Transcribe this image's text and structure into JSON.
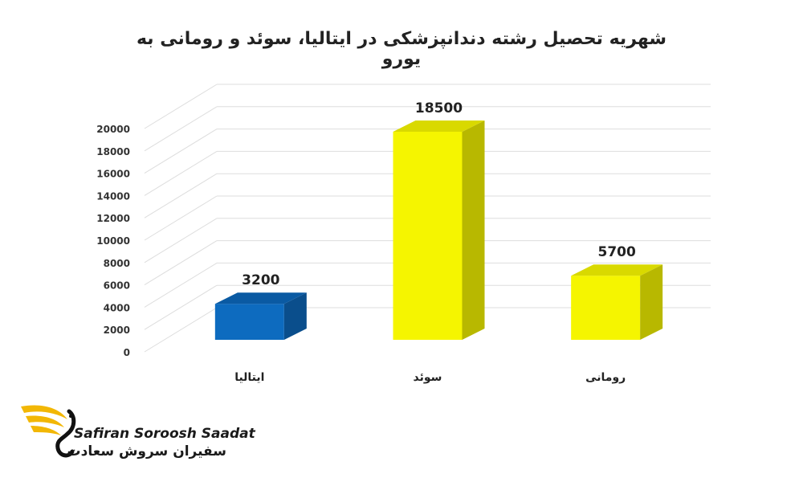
{
  "chart_data": {
    "type": "bar",
    "title": "شهریه تحصیل رشته دندانپزشکی در ایتالیا، سوئد و رومانی به یورو",
    "categories": [
      "ایتالیا",
      "سوئد",
      "رومانی"
    ],
    "values": [
      3200,
      18500,
      5700
    ],
    "yticks": [
      0,
      2000,
      4000,
      6000,
      8000,
      10000,
      12000,
      14000,
      16000,
      18000,
      20000
    ],
    "ylim": [
      0,
      20000
    ],
    "grid": true,
    "bar_colors": [
      "#0d6bbf",
      "#f5f500",
      "#f5f500"
    ],
    "bar_side_colors": [
      "#0a4e8c",
      "#b8b800",
      "#b8b800"
    ],
    "bar_top_colors": [
      "#0a5aa3",
      "#d9d900",
      "#d9d900"
    ]
  },
  "logo": {
    "name_en": "Safiran Soroosh Saadat",
    "name_fa": "سفیران سروش سعادت",
    "accent_color": "#f2b705"
  }
}
